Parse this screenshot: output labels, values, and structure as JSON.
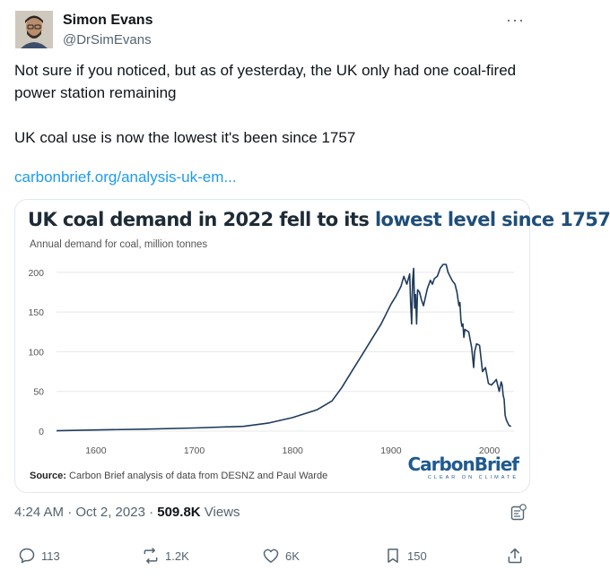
{
  "author": {
    "name": "Simon Evans",
    "handle": "@DrSimEvans"
  },
  "menu_icon": "more-horizontal-icon",
  "tweet": {
    "text": "Not sure if you noticed, but as of yesterday, the UK only had one coal-fired power station remaining\n\nUK coal use is now the lowest it's been since 1757",
    "link": "carbonbrief.org/analysis-uk-em..."
  },
  "chart": {
    "title_part1": "UK coal demand in 2022 fell to its ",
    "title_part2": "lowest level since 1757",
    "subtitle": "Annual demand for coal, million tonnes",
    "source_label": "Source:",
    "source_text": " Carbon Brief analysis of data from DESNZ and Paul Warde",
    "logo_main": "CarbonBrief",
    "logo_sub": "CLEAR ON CLIMATE",
    "colors": {
      "line": "#1f3b5c",
      "highlight": "#1f4e79",
      "grid": "#e8e8e8"
    }
  },
  "chart_data": {
    "type": "line",
    "title": "UK coal demand in 2022 fell to its lowest level since 1757",
    "ylabel": "Annual demand for coal, million tonnes",
    "xlim": [
      1560,
      2025
    ],
    "ylim": [
      0,
      210
    ],
    "xticks": [
      1600,
      1700,
      1800,
      1900,
      2000
    ],
    "yticks": [
      0,
      50,
      100,
      150,
      200
    ],
    "grid": true,
    "series": [
      {
        "x": [
          1560,
          1600,
          1650,
          1700,
          1750,
          1775,
          1800,
          1825,
          1840,
          1850,
          1860,
          1870,
          1880,
          1890,
          1900,
          1905,
          1910,
          1913,
          1916,
          1919,
          1920,
          1921,
          1922,
          1923,
          1924,
          1925,
          1926,
          1927,
          1929,
          1931,
          1933,
          1937,
          1940,
          1942,
          1944,
          1947,
          1950,
          1953,
          1956,
          1958,
          1960,
          1962,
          1965,
          1967,
          1969,
          1970,
          1971,
          1972,
          1973,
          1974,
          1975,
          1979,
          1982,
          1984,
          1985,
          1987,
          1990,
          1993,
          1996,
          1999,
          2002,
          2005,
          2007,
          2010,
          2012,
          2013,
          2014,
          2015,
          2016,
          2017,
          2018,
          2020,
          2022
        ],
        "y": [
          0.5,
          1.5,
          2.5,
          4,
          6,
          10,
          17,
          27,
          38,
          55,
          75,
          95,
          115,
          135,
          160,
          170,
          182,
          195,
          185,
          198,
          160,
          135,
          190,
          205,
          155,
          172,
          135,
          178,
          175,
          165,
          158,
          180,
          190,
          185,
          192,
          195,
          205,
          210,
          210,
          200,
          195,
          190,
          185,
          175,
          158,
          162,
          140,
          132,
          135,
          118,
          128,
          125,
          105,
          80,
          100,
          110,
          108,
          75,
          80,
          60,
          58,
          62,
          65,
          50,
          62,
          58,
          45,
          40,
          20,
          15,
          12,
          7,
          6
        ]
      }
    ]
  },
  "meta": {
    "time": "4:24 AM · Oct 2, 2023 · ",
    "views_count": "509.8K",
    "views_label": " Views"
  },
  "actions": {
    "replies": "113",
    "reposts": "1.2K",
    "likes": "6K",
    "bookmarks": "150"
  }
}
